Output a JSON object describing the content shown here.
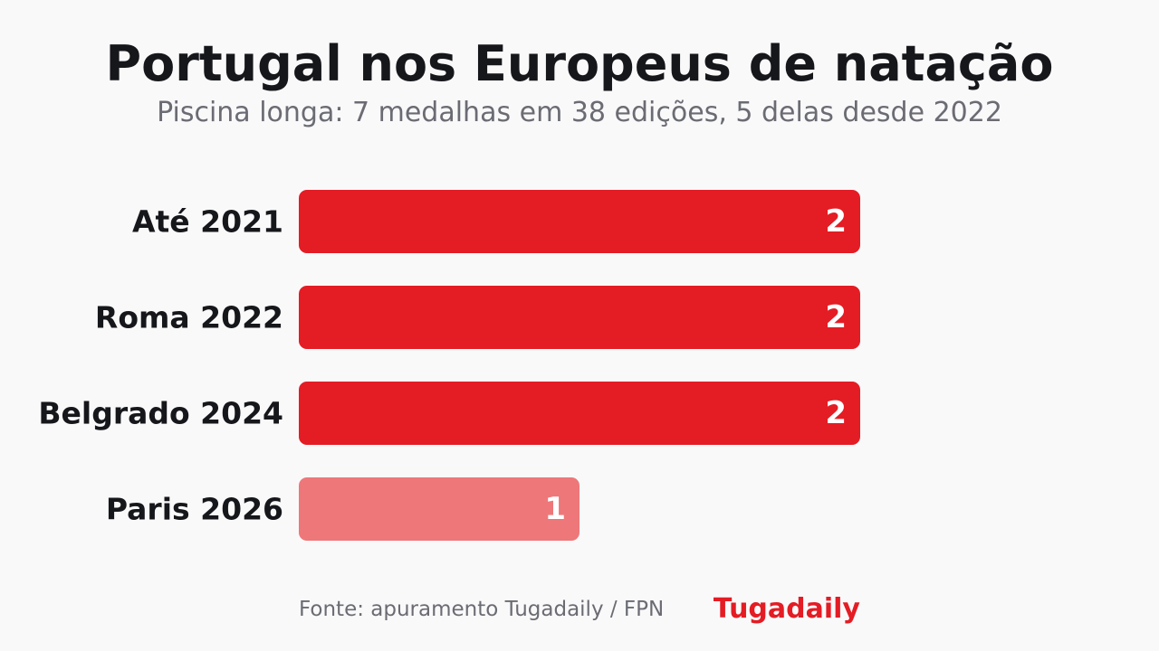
{
  "colors": {
    "background": "#f9f9fa",
    "bar_primary": "#e41c24",
    "bar_highlight": "#ee777a",
    "value_label": "#ffffff",
    "category_label": "#16171b",
    "brand": "#e41c24"
  },
  "chart_data": {
    "type": "bar",
    "orientation": "horizontal",
    "title": "Portugal nos Europeus de natação",
    "subtitle": "Piscina longa: 7 medalhas em 38 edições, 5 delas desde 2022",
    "categories": [
      "Até 2021",
      "Roma 2022",
      "Belgrado 2024",
      "Paris 2026"
    ],
    "values": [
      2,
      2,
      2,
      1
    ],
    "data_labels": [
      "2",
      "2",
      "2",
      "1"
    ],
    "highlighted_category": "Paris 2026",
    "xlim": [
      0,
      2
    ],
    "grid": false,
    "legend": "none"
  },
  "footer": {
    "source": "Fonte: apuramento Tugadaily / FPN",
    "brand": "Tugadaily"
  }
}
